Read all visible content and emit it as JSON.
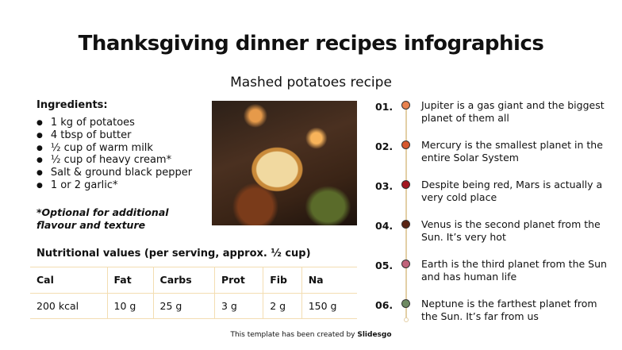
{
  "title": "Thanksgiving dinner recipes infographics",
  "subtitle": "Mashed potatoes recipe",
  "ingredients": {
    "heading": "Ingredients:",
    "items": [
      "1 kg of potatoes",
      "4 tbsp of butter",
      "½ cup of warm milk",
      "½ cup of heavy cream*",
      "Salt & ground black pepper",
      "1 or 2 garlic*"
    ],
    "note": "*Optional for additional flavour and texture"
  },
  "nutrition": {
    "heading": "Nutritional values (per serving, approx. ½ cup)",
    "headers": [
      "Cal",
      "Fat",
      "Carbs",
      "Prot",
      "Fib",
      "Na"
    ],
    "values": [
      "200 kcal",
      "10 g",
      "25 g",
      "3 g",
      "2 g",
      "150 g"
    ]
  },
  "steps": [
    {
      "num": "01.",
      "text": "Jupiter is a gas giant and the biggest planet of them all",
      "color": "#e8824f"
    },
    {
      "num": "02.",
      "text": "Mercury is the smallest planet in the entire Solar System",
      "color": "#d6582e"
    },
    {
      "num": "03.",
      "text": "Despite being red, Mars is actually a very cold place",
      "color": "#a3161f"
    },
    {
      "num": "04.",
      "text": "Venus is the second planet from the Sun. It’s very hot",
      "color": "#5a2414"
    },
    {
      "num": "05.",
      "text": "Earth is the third planet from the Sun and has human life",
      "color": "#c0637a"
    },
    {
      "num": "06.",
      "text": "Neptune is the farthest planet from the Sun. It’s far from us",
      "color": "#6f8a62"
    }
  ],
  "credit": {
    "text": "This template has been created by ",
    "brand": "Slidesgo"
  }
}
